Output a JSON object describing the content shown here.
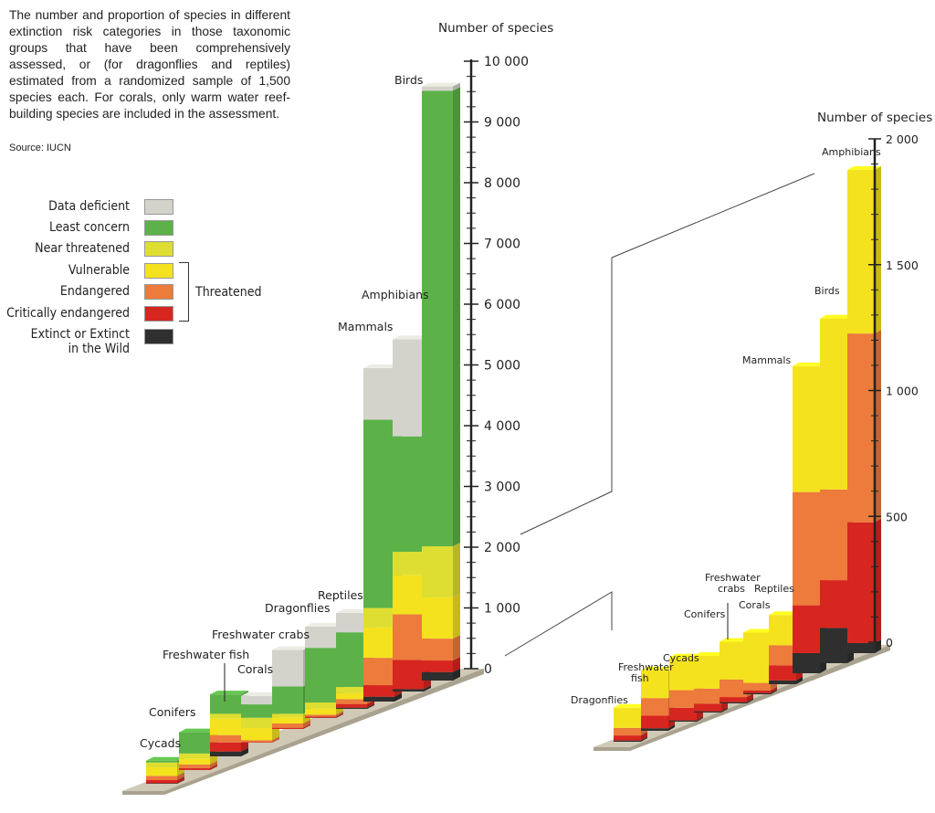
{
  "description": "The number and proportion of species in different extinction risk categories in those taxonomic groups that have been comprehensively assessed, or (for dragonflies and reptiles) estimated from a randomized sample of 1,500 species each. For corals, only warm water reef-building species are included in the assessment.",
  "source": "Source: IUCN",
  "legend": {
    "items": [
      {
        "label": "Data deficient",
        "color": "#d3d3cb"
      },
      {
        "label": "Least concern",
        "color": "#5cb248"
      },
      {
        "label": "Near threatened",
        "color": "#dede32"
      },
      {
        "label": "Vulnerable",
        "color": "#f4e21e"
      },
      {
        "label": "Endangered",
        "color": "#ec7b3c"
      },
      {
        "label": "Critically endangered",
        "color": "#d7261f"
      },
      {
        "label": "Extinct or Extinct\nin the Wild",
        "color": "#2f2f2f"
      }
    ],
    "bracket_label": "Threatened"
  },
  "chart_data": [
    {
      "type": "bar",
      "stacked": true,
      "ylabel": "Number of species",
      "ylim": [
        0,
        10000
      ],
      "yticks": [
        "0",
        "1 000",
        "2 000",
        "3 000",
        "4 000",
        "5 000",
        "6 000",
        "7 000",
        "8 000",
        "9 000",
        "10 000"
      ],
      "categories": [
        "Cycads",
        "Conifers",
        "Freshwater fish",
        "Corals",
        "Freshwater crabs",
        "Dragonflies",
        "Reptiles",
        "Mammals",
        "Amphibians",
        "Birds"
      ],
      "series": [
        {
          "name": "Extinct or Extinct in the Wild",
          "values": [
            10,
            2,
            80,
            0,
            0,
            5,
            20,
            80,
            40,
            140
          ]
        },
        {
          "name": "Critically endangered",
          "values": [
            50,
            30,
            150,
            10,
            20,
            20,
            60,
            190,
            480,
            190
          ]
        },
        {
          "name": "Endangered",
          "values": [
            70,
            60,
            120,
            30,
            70,
            30,
            80,
            450,
            750,
            360
          ]
        },
        {
          "name": "Vulnerable",
          "values": [
            140,
            100,
            270,
            200,
            100,
            100,
            100,
            500,
            650,
            680
          ]
        },
        {
          "name": "Near threatened",
          "values": [
            80,
            80,
            80,
            170,
            60,
            100,
            100,
            320,
            380,
            840
          ]
        },
        {
          "name": "Least concern",
          "values": [
            30,
            350,
            320,
            220,
            450,
            900,
            900,
            3100,
            1900,
            7500
          ]
        },
        {
          "name": "Data deficient",
          "values": [
            0,
            0,
            0,
            140,
            600,
            350,
            320,
            850,
            1600,
            70
          ]
        }
      ]
    },
    {
      "type": "bar",
      "stacked": true,
      "ylabel": "Number of species",
      "ylim": [
        0,
        2000
      ],
      "yticks": [
        "0",
        "500",
        "1 000",
        "1 500",
        "2 000"
      ],
      "categories": [
        "Dragonflies",
        "Freshwater fish",
        "Cycads",
        "Conifers",
        "Freshwater crabs",
        "Corals",
        "Reptiles",
        "Mammals",
        "Birds",
        "Amphibians"
      ],
      "series": [
        {
          "name": "Extinct or Extinct in the Wild",
          "values": [
            5,
            10,
            5,
            5,
            5,
            5,
            15,
            80,
            140,
            40
          ]
        },
        {
          "name": "Critically endangered",
          "values": [
            20,
            50,
            50,
            30,
            20,
            10,
            60,
            190,
            190,
            480
          ]
        },
        {
          "name": "Endangered",
          "values": [
            30,
            70,
            70,
            60,
            70,
            30,
            80,
            450,
            360,
            750
          ]
        },
        {
          "name": "Vulnerable",
          "values": [
            80,
            110,
            130,
            130,
            150,
            200,
            120,
            500,
            680,
            650
          ]
        }
      ]
    }
  ],
  "labels": {
    "axis_title_left": "Number of species",
    "axis_title_right": "Number of species"
  }
}
